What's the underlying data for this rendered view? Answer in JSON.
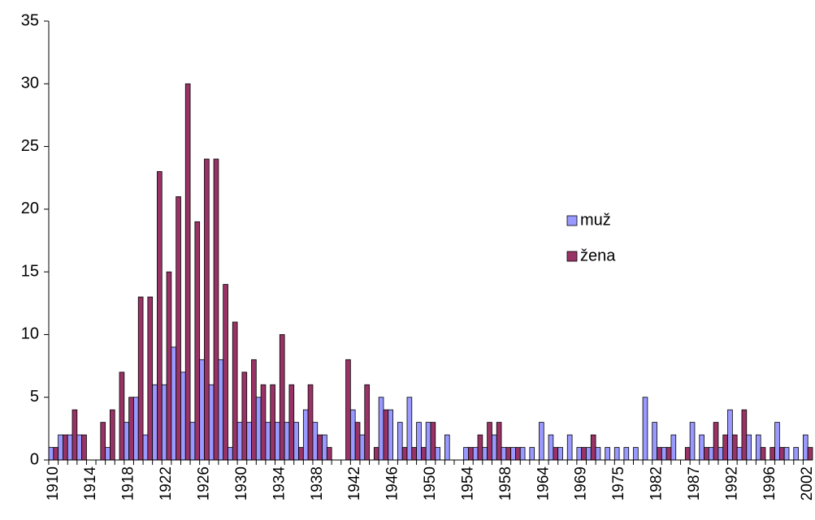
{
  "chart_data": {
    "type": "bar",
    "categories": [
      "1910",
      null,
      null,
      null,
      "1914",
      null,
      null,
      null,
      "1918",
      null,
      null,
      null,
      "1922",
      null,
      null,
      null,
      "1926",
      null,
      null,
      null,
      "1930",
      null,
      null,
      null,
      "1934",
      null,
      null,
      null,
      "1938",
      null,
      null,
      null,
      "1942",
      null,
      null,
      null,
      "1946",
      null,
      null,
      null,
      "1950",
      null,
      null,
      null,
      "1954",
      null,
      null,
      null,
      "1958",
      null,
      null,
      null,
      "1964",
      null,
      null,
      null,
      "1969",
      null,
      null,
      null,
      "1975",
      null,
      null,
      null,
      "1982",
      null,
      null,
      null,
      "1987",
      null,
      null,
      null,
      "1992",
      null,
      null,
      null,
      "1996",
      null,
      null,
      null,
      "2002"
    ],
    "series": [
      {
        "name": "muž",
        "color": "#9999ff",
        "values": [
          1,
          2,
          2,
          2,
          0,
          0,
          1,
          0,
          3,
          5,
          2,
          6,
          6,
          9,
          7,
          3,
          8,
          6,
          8,
          1,
          3,
          3,
          5,
          3,
          3,
          3,
          3,
          4,
          3,
          2,
          0,
          0,
          4,
          2,
          0,
          5,
          4,
          3,
          5,
          3,
          3,
          1,
          2,
          0,
          1,
          1,
          1,
          2,
          1,
          1,
          1,
          1,
          3,
          2,
          1,
          2,
          1,
          1,
          1,
          1,
          1,
          1,
          1,
          5,
          3,
          1,
          2,
          0,
          3,
          2,
          1,
          1,
          4,
          1,
          2,
          2,
          0,
          3,
          1,
          1,
          2
        ]
      },
      {
        "name": "žena",
        "color": "#993366",
        "values": [
          1,
          2,
          4,
          2,
          0,
          3,
          4,
          7,
          5,
          13,
          13,
          23,
          15,
          21,
          30,
          19,
          24,
          24,
          14,
          11,
          7,
          8,
          6,
          6,
          10,
          6,
          1,
          6,
          2,
          1,
          0,
          8,
          3,
          6,
          1,
          4,
          0,
          1,
          1,
          1,
          3,
          0,
          0,
          0,
          1,
          2,
          3,
          3,
          1,
          1,
          0,
          0,
          0,
          1,
          0,
          0,
          1,
          2,
          0,
          0,
          0,
          0,
          0,
          0,
          1,
          1,
          0,
          1,
          0,
          1,
          3,
          2,
          2,
          4,
          0,
          1,
          1,
          1,
          0,
          0,
          1
        ]
      }
    ],
    "ylim": [
      0,
      35
    ],
    "yticks": [
      0,
      5,
      10,
      15,
      20,
      25,
      30,
      35
    ],
    "grid": false,
    "legend": "right"
  }
}
